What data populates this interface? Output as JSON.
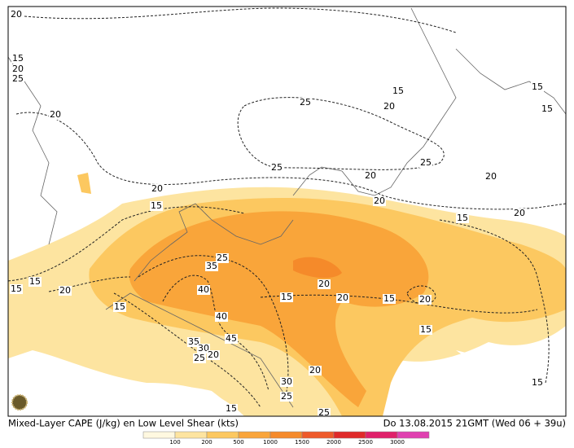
{
  "caption": {
    "left": "Mixed-Layer CAPE (J/kg) en Low Level Shear (kts)",
    "right": "Do 13.08.2015 21GMT (Wed 06 + 39u)"
  },
  "colorbar": {
    "ticks": [
      100,
      200,
      500,
      1000,
      1500,
      2000,
      2500,
      3000
    ],
    "colors": [
      "#fff8e0",
      "#fde4a0",
      "#fcc860",
      "#f9a53a",
      "#f58a2a",
      "#ee5a2a",
      "#e02a2a",
      "#e0206a",
      "#e040b0"
    ]
  },
  "contour_labels": [
    "20",
    "15",
    "20",
    "25",
    "20",
    "25",
    "15",
    "20",
    "15",
    "15",
    "25",
    "25",
    "20",
    "20",
    "20",
    "20",
    "15",
    "15",
    "20",
    "15",
    "20",
    "15",
    "15",
    "25",
    "35",
    "40",
    "20",
    "15",
    "20",
    "15",
    "20",
    "40",
    "45",
    "15",
    "35",
    "30",
    "25",
    "20",
    "20",
    "30",
    "25",
    "15",
    "15",
    "25"
  ]
}
